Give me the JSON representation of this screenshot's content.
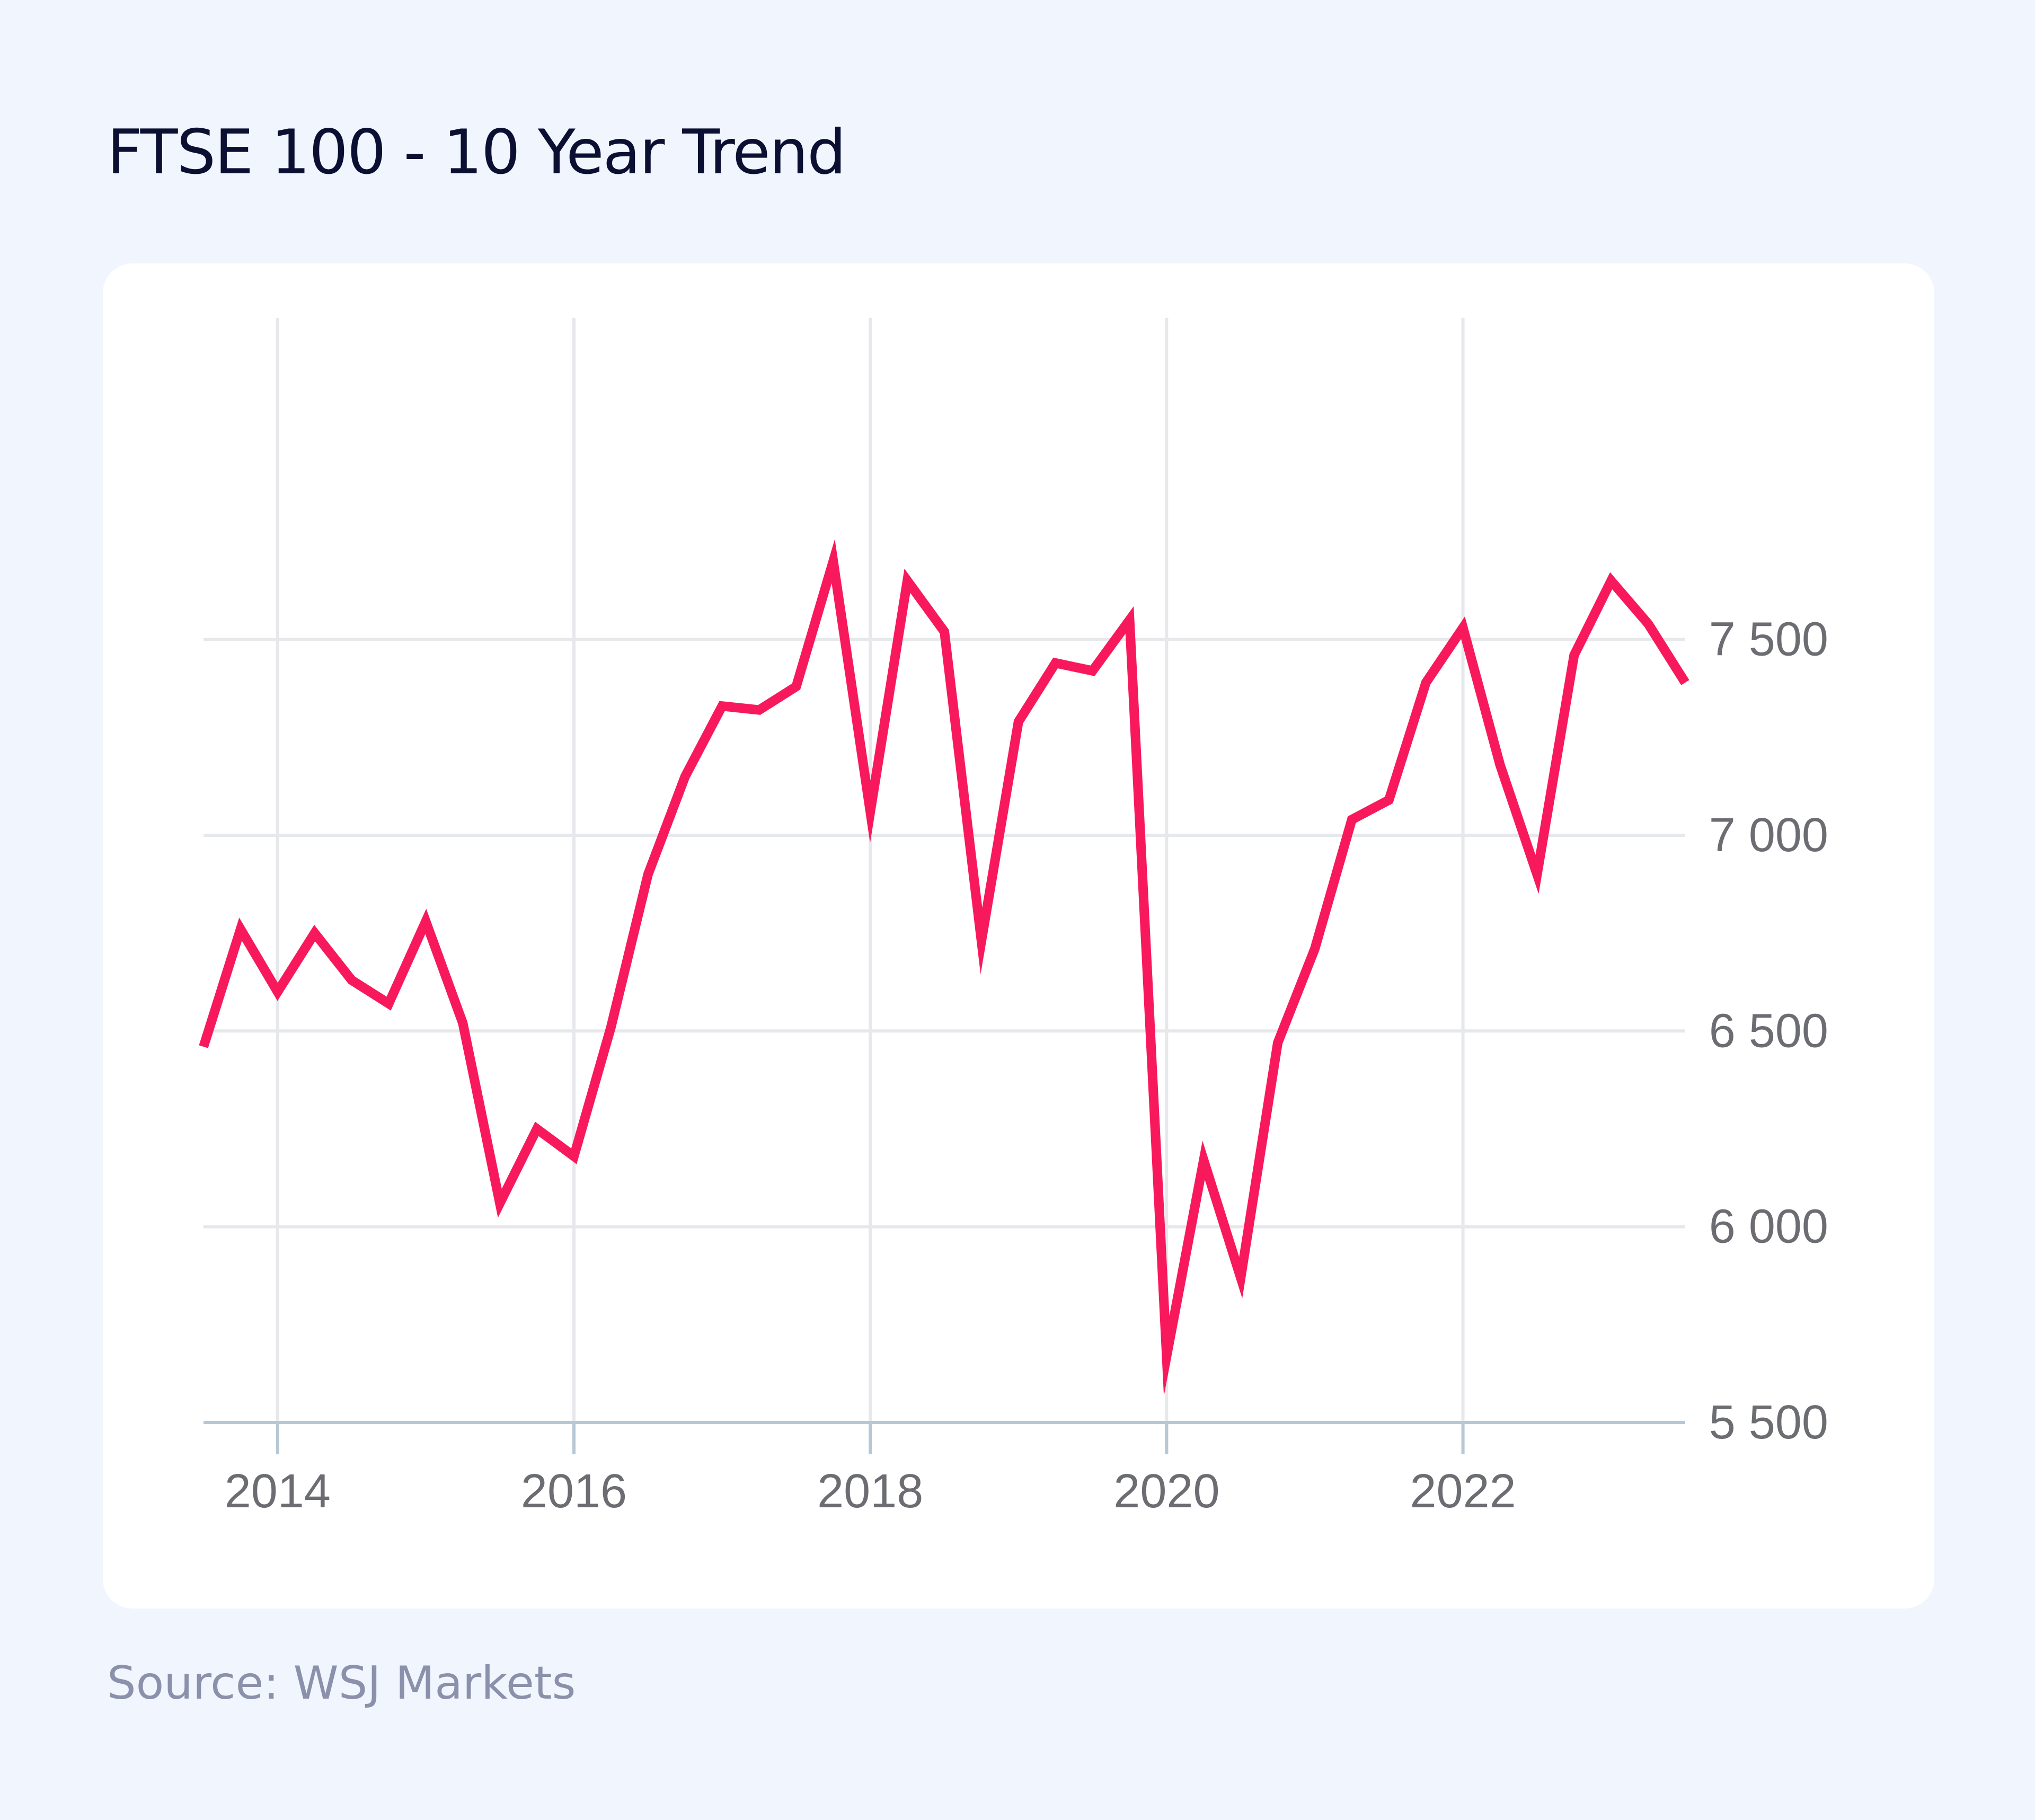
{
  "title": "FTSE 100 - 10 Year Trend",
  "source": "Source: WSJ Markets",
  "colors": {
    "background": "#f1f5fe",
    "card": "#ffffff",
    "line": "#f8195d",
    "grid": "#e6e8ec",
    "axis": "#b7c7d5",
    "tick_label": "#6b6d72",
    "title": "#0b1033",
    "source": "#8b91aa"
  },
  "chart_data": {
    "type": "line",
    "title": "FTSE 100 - 10 Year Trend",
    "xlabel": "",
    "ylabel": "",
    "xlim": [
      2013.5,
      2023.5
    ],
    "ylim": [
      5500,
      7800
    ],
    "x_ticks": [
      2014,
      2016,
      2018,
      2020,
      2022
    ],
    "x_tick_labels": [
      "2014",
      "2016",
      "2018",
      "2020",
      "2022"
    ],
    "y_ticks": [
      5500,
      6000,
      6500,
      7000,
      7500
    ],
    "y_tick_labels": [
      "5 500",
      "6 000",
      "6 500",
      "7 000",
      "7 500"
    ],
    "y_axis_position": "right",
    "grid": true,
    "legend": "none",
    "series": [
      {
        "x": [
          2013.5,
          2013.75,
          2014.0,
          2014.25,
          2014.5,
          2014.75,
          2015.0,
          2015.25,
          2015.5,
          2015.75,
          2016.0,
          2016.25,
          2016.5,
          2016.75,
          2017.0,
          2017.25,
          2017.5,
          2017.75,
          2018.0,
          2018.25,
          2018.5,
          2018.75,
          2019.0,
          2019.25,
          2019.5,
          2019.75,
          2020.0,
          2020.25,
          2020.5,
          2020.75,
          2021.0,
          2021.25,
          2021.5,
          2021.75,
          2022.0,
          2022.25,
          2022.5,
          2022.75,
          2023.0,
          2023.25,
          2023.5
        ],
        "values": [
          6460,
          6760,
          6600,
          6750,
          6630,
          6570,
          6780,
          6520,
          6060,
          6250,
          6180,
          6510,
          6900,
          7150,
          7330,
          7320,
          7380,
          7700,
          7060,
          7650,
          7520,
          6730,
          7290,
          7440,
          7420,
          7550,
          5670,
          6170,
          5870,
          6470,
          6710,
          7040,
          7090,
          7390,
          7530,
          7180,
          6900,
          7460,
          7650,
          7540,
          7390
        ]
      }
    ]
  }
}
